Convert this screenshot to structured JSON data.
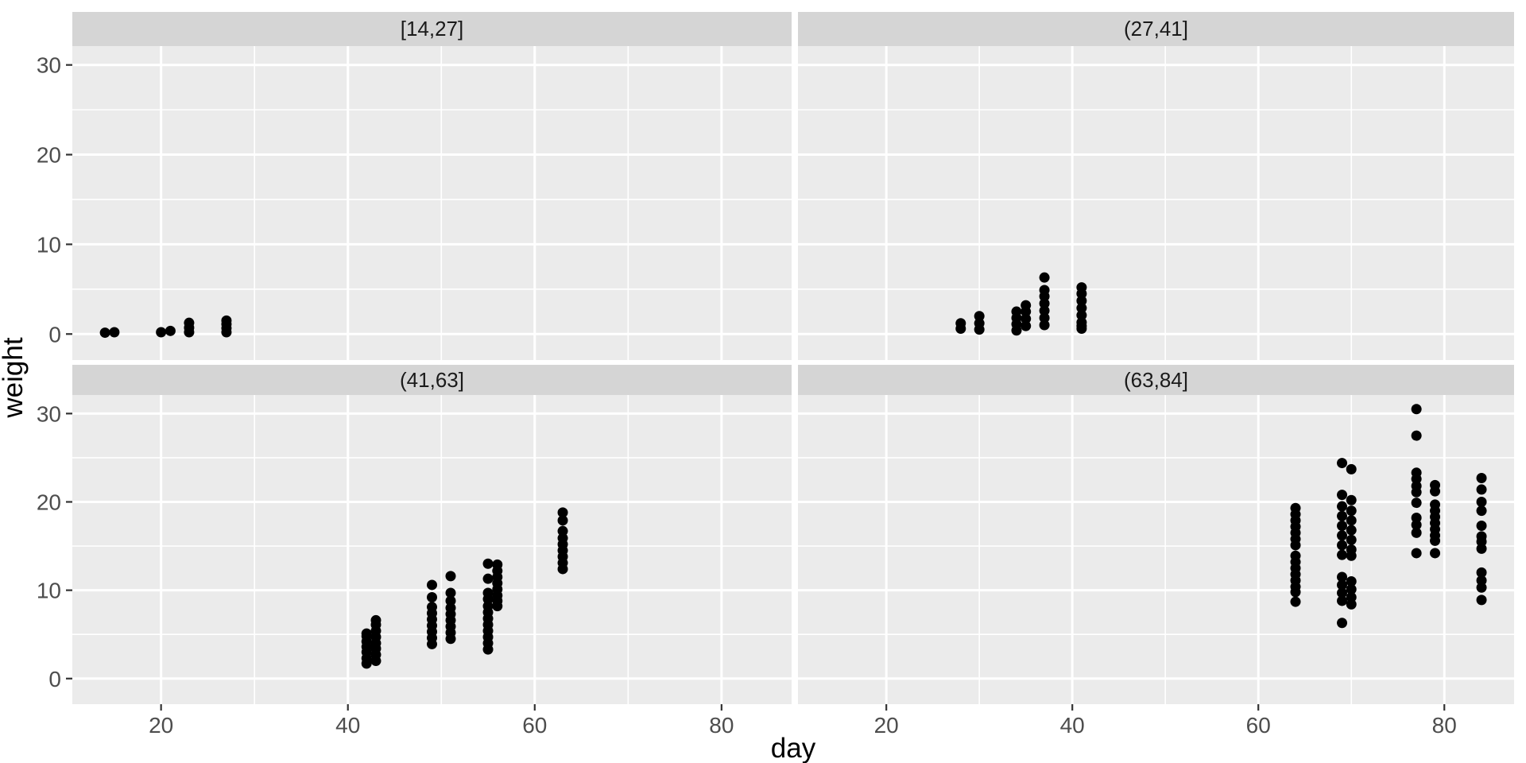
{
  "chart_data": {
    "type": "scatter",
    "title": "",
    "xlabel": "day",
    "ylabel": "weight",
    "x_domain": [
      10.5,
      87.5
    ],
    "y_domain": [
      -2.9,
      32.1
    ],
    "x_major_ticks": [
      20,
      40,
      60,
      80
    ],
    "x_minor_ticks": [
      30,
      50,
      70
    ],
    "y_major_ticks": [
      0,
      10,
      20,
      30
    ],
    "y_minor_ticks": [
      5,
      15,
      25
    ],
    "grid": "on",
    "legend": "none",
    "facet_layout": "2x2 grid, facets of day intervals, shared axes",
    "facets": [
      {
        "label": "[14,27]",
        "row": 0,
        "col": 0,
        "points": [
          [
            14,
            0.15
          ],
          [
            15,
            0.2
          ],
          [
            20,
            0.2
          ],
          [
            21,
            0.35
          ],
          [
            23,
            0.2
          ],
          [
            23,
            0.7
          ],
          [
            23,
            1.25
          ],
          [
            27,
            0.2
          ],
          [
            27,
            0.65
          ],
          [
            27,
            1.1
          ],
          [
            27,
            1.5
          ]
        ]
      },
      {
        "label": "(27,41]",
        "row": 0,
        "col": 1,
        "points": [
          [
            28,
            0.6
          ],
          [
            28,
            1.2
          ],
          [
            30,
            0.5
          ],
          [
            30,
            1.2
          ],
          [
            30,
            2.0
          ],
          [
            34,
            0.4
          ],
          [
            34,
            1.1
          ],
          [
            34,
            1.8
          ],
          [
            34,
            2.5
          ],
          [
            35,
            0.9
          ],
          [
            35,
            1.7
          ],
          [
            35,
            2.5
          ],
          [
            35,
            3.2
          ],
          [
            37,
            1.0
          ],
          [
            37,
            1.8
          ],
          [
            37,
            2.6
          ],
          [
            37,
            3.4
          ],
          [
            37,
            4.2
          ],
          [
            37,
            4.9
          ],
          [
            37,
            6.3
          ],
          [
            41,
            0.6
          ],
          [
            41,
            0.9
          ],
          [
            41,
            1.3
          ],
          [
            41,
            2.1
          ],
          [
            41,
            2.9
          ],
          [
            41,
            3.7
          ],
          [
            41,
            4.5
          ],
          [
            41,
            5.2
          ]
        ]
      },
      {
        "label": "(41,63]",
        "row": 1,
        "col": 0,
        "points": [
          [
            42,
            1.7
          ],
          [
            42,
            2.3
          ],
          [
            42,
            3.0
          ],
          [
            42,
            3.6
          ],
          [
            42,
            4.2
          ],
          [
            42,
            4.8
          ],
          [
            42,
            5.1
          ],
          [
            43,
            2.0
          ],
          [
            43,
            2.7
          ],
          [
            43,
            3.4
          ],
          [
            43,
            4.0
          ],
          [
            43,
            4.7
          ],
          [
            43,
            5.4
          ],
          [
            43,
            6.1
          ],
          [
            43,
            6.6
          ],
          [
            49,
            3.9
          ],
          [
            49,
            4.6
          ],
          [
            49,
            5.3
          ],
          [
            49,
            6.0
          ],
          [
            49,
            6.7
          ],
          [
            49,
            7.4
          ],
          [
            49,
            8.1
          ],
          [
            49,
            9.2
          ],
          [
            49,
            10.6
          ],
          [
            51,
            4.5
          ],
          [
            51,
            5.2
          ],
          [
            51,
            5.9
          ],
          [
            51,
            6.6
          ],
          [
            51,
            7.3
          ],
          [
            51,
            8.0
          ],
          [
            51,
            8.8
          ],
          [
            51,
            9.7
          ],
          [
            51,
            11.6
          ],
          [
            55,
            3.3
          ],
          [
            55,
            4.0
          ],
          [
            55,
            4.7
          ],
          [
            55,
            5.4
          ],
          [
            55,
            6.1
          ],
          [
            55,
            6.8
          ],
          [
            55,
            7.5
          ],
          [
            55,
            8.2
          ],
          [
            55,
            9.0
          ],
          [
            55,
            9.7
          ],
          [
            55,
            11.3
          ],
          [
            55,
            13.0
          ],
          [
            56,
            8.2
          ],
          [
            56,
            8.8
          ],
          [
            56,
            9.4
          ],
          [
            56,
            10.1
          ],
          [
            56,
            10.8
          ],
          [
            56,
            11.5
          ],
          [
            56,
            12.2
          ],
          [
            56,
            12.9
          ],
          [
            63,
            12.4
          ],
          [
            63,
            13.1
          ],
          [
            63,
            13.8
          ],
          [
            63,
            14.5
          ],
          [
            63,
            15.2
          ],
          [
            63,
            15.9
          ],
          [
            63,
            16.7
          ],
          [
            63,
            17.9
          ],
          [
            63,
            18.8
          ]
        ]
      },
      {
        "label": "(63,84]",
        "row": 1,
        "col": 1,
        "points": [
          [
            64,
            8.7
          ],
          [
            64,
            9.8
          ],
          [
            64,
            10.4
          ],
          [
            64,
            11.1
          ],
          [
            64,
            11.8
          ],
          [
            64,
            12.5
          ],
          [
            64,
            13.2
          ],
          [
            64,
            13.9
          ],
          [
            64,
            15.1
          ],
          [
            64,
            15.8
          ],
          [
            64,
            16.5
          ],
          [
            64,
            17.2
          ],
          [
            64,
            17.9
          ],
          [
            64,
            18.6
          ],
          [
            64,
            19.3
          ],
          [
            69,
            6.3
          ],
          [
            69,
            8.8
          ],
          [
            69,
            9.7
          ],
          [
            69,
            10.6
          ],
          [
            69,
            11.5
          ],
          [
            69,
            14.0
          ],
          [
            69,
            15.1
          ],
          [
            69,
            16.2
          ],
          [
            69,
            17.3
          ],
          [
            69,
            18.4
          ],
          [
            69,
            19.5
          ],
          [
            69,
            20.8
          ],
          [
            69,
            24.4
          ],
          [
            70,
            8.4
          ],
          [
            70,
            9.2
          ],
          [
            70,
            10.1
          ],
          [
            70,
            11.0
          ],
          [
            70,
            13.9
          ],
          [
            70,
            14.6
          ],
          [
            70,
            15.7
          ],
          [
            70,
            16.8
          ],
          [
            70,
            17.9
          ],
          [
            70,
            19.0
          ],
          [
            70,
            20.2
          ],
          [
            70,
            23.7
          ],
          [
            77,
            14.2
          ],
          [
            77,
            16.5
          ],
          [
            77,
            17.4
          ],
          [
            77,
            18.2
          ],
          [
            77,
            19.9
          ],
          [
            77,
            21.1
          ],
          [
            77,
            21.8
          ],
          [
            77,
            22.6
          ],
          [
            77,
            23.3
          ],
          [
            77,
            27.5
          ],
          [
            77,
            30.5
          ],
          [
            79,
            14.2
          ],
          [
            79,
            15.6
          ],
          [
            79,
            16.2
          ],
          [
            79,
            16.9
          ],
          [
            79,
            17.6
          ],
          [
            79,
            18.3
          ],
          [
            79,
            19.0
          ],
          [
            79,
            19.7
          ],
          [
            79,
            21.2
          ],
          [
            79,
            21.9
          ],
          [
            84,
            8.9
          ],
          [
            84,
            10.3
          ],
          [
            84,
            11.1
          ],
          [
            84,
            12.0
          ],
          [
            84,
            14.7
          ],
          [
            84,
            15.5
          ],
          [
            84,
            16.1
          ],
          [
            84,
            17.3
          ],
          [
            84,
            19.0
          ],
          [
            84,
            20.0
          ],
          [
            84,
            21.4
          ],
          [
            84,
            22.7
          ]
        ]
      }
    ]
  },
  "colors": {
    "figure_bg": "#ffffff",
    "panel_bg": "#ebebeb",
    "strip_bg": "#d5d5d5",
    "grid": "#ffffff",
    "point": "#000000",
    "tick_mark": "#333333",
    "tick_text": "#4d4d4d",
    "axis_title_text": "#000000",
    "strip_text": "#1a1a1a"
  }
}
